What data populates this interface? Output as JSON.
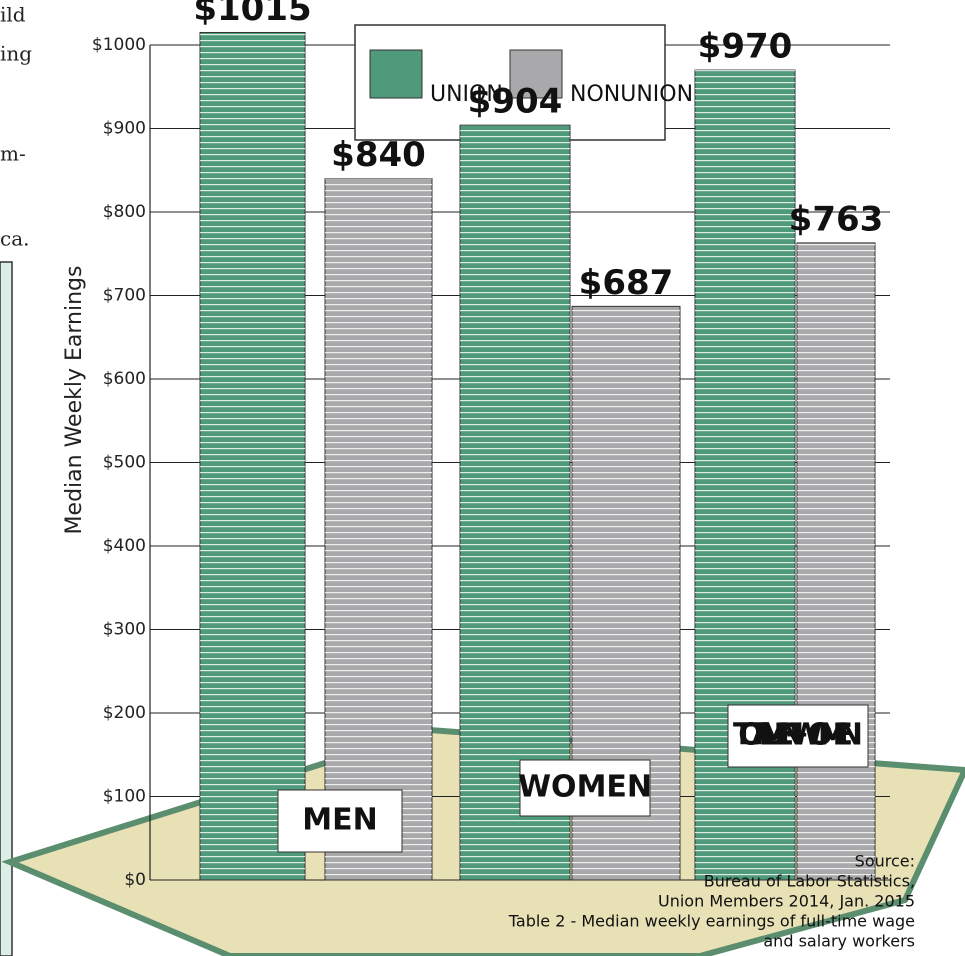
{
  "margin_text": [
    "ild",
    "ing",
    "m-",
    "ca."
  ],
  "chart_data": {
    "type": "bar",
    "y_axis_label": "Median Weekly Earnings",
    "categories": [
      "MEN",
      "WOMEN",
      "TOTAL MEN + WOMEN"
    ],
    "series": [
      {
        "name": "UNION",
        "color": "#4f9a7a",
        "values": [
          1015,
          904,
          970
        ],
        "value_labels": [
          "$1015",
          "$904",
          "$970"
        ]
      },
      {
        "name": "NONUNION",
        "color": "#a9a9ab",
        "values": [
          840,
          687,
          763
        ],
        "value_labels": [
          "$840",
          "$687",
          "$763"
        ]
      }
    ],
    "ylim": [
      0,
      1000
    ],
    "yticks": [
      {
        "value": 0,
        "label": "$0"
      },
      {
        "value": 100,
        "label": "$100"
      },
      {
        "value": 200,
        "label": "$200"
      },
      {
        "value": 300,
        "label": "$300"
      },
      {
        "value": 400,
        "label": "$400"
      },
      {
        "value": 500,
        "label": "$500"
      },
      {
        "value": 600,
        "label": "$600"
      },
      {
        "value": 700,
        "label": "$700"
      },
      {
        "value": 800,
        "label": "$800"
      },
      {
        "value": 900,
        "label": "$900"
      },
      {
        "value": 1000,
        "label": "$1000"
      }
    ],
    "grid": true,
    "legend": "top",
    "source": [
      "Source:",
      "Bureau of Labor Statistics,",
      "Union Members 2014, Jan. 2015",
      "Table 2 - Median weekly earnings of full-time wage",
      "and salary workers"
    ]
  }
}
